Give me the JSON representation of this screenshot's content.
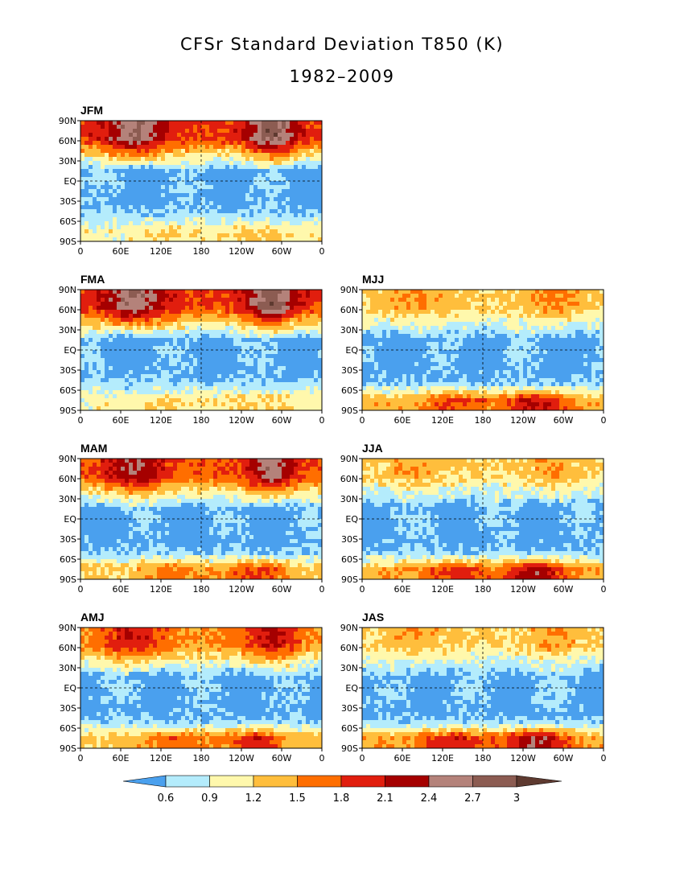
{
  "title": "CFSr Standard Deviation T850 (K)",
  "subtitle": "1982–2009",
  "chart_data": {
    "type": "heatmap",
    "variable": "Standard deviation of 850 hPa temperature (K)",
    "period": "1982-2009",
    "lon_ticks": [
      "0",
      "60E",
      "120E",
      "180",
      "120W",
      "60W",
      "0"
    ],
    "lat_ticks": [
      "90N",
      "60N",
      "30N",
      "EQ",
      "30S",
      "60S",
      "90S"
    ],
    "xlim": [
      0,
      360
    ],
    "ylim": [
      -90,
      90
    ],
    "grid": "dashed lines at Equator and 180",
    "panels": [
      {
        "label": "JFM",
        "nh_high_lat_peak": 2.9,
        "sh_high_lat_peak": 1.3,
        "tropics": 0.5
      },
      {
        "label": "FMA",
        "nh_high_lat_peak": 2.9,
        "sh_high_lat_peak": 1.3,
        "tropics": 0.5
      },
      {
        "label": "MJJ",
        "nh_high_lat_peak": 1.6,
        "sh_high_lat_peak": 2.2,
        "tropics": 0.5
      },
      {
        "label": "MAM",
        "nh_high_lat_peak": 2.6,
        "sh_high_lat_peak": 1.9,
        "tropics": 0.5
      },
      {
        "label": "JJA",
        "nh_high_lat_peak": 1.5,
        "sh_high_lat_peak": 2.3,
        "tropics": 0.5
      },
      {
        "label": "AMJ",
        "nh_high_lat_peak": 2.2,
        "sh_high_lat_peak": 2.0,
        "tropics": 0.5
      },
      {
        "label": "JAS",
        "nh_high_lat_peak": 1.5,
        "sh_high_lat_peak": 2.4,
        "tropics": 0.5
      }
    ],
    "colorbar": {
      "levels": [
        "0.6",
        "0.9",
        "1.2",
        "1.5",
        "1.8",
        "2.1",
        "2.4",
        "2.7",
        "3"
      ],
      "colors": [
        "#4aa0ee",
        "#b4ecfc",
        "#fff8ac",
        "#ffbe3c",
        "#ff6e00",
        "#e11e0e",
        "#a50000",
        "#b4827a",
        "#8c5c52",
        "#5e3a30"
      ],
      "extend": "both"
    }
  }
}
